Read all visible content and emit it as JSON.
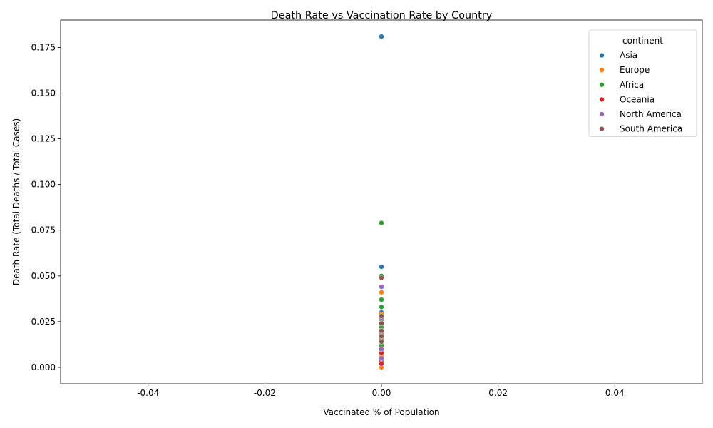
{
  "chart_data": {
    "type": "scatter",
    "title": "Death Rate vs Vaccination Rate by Country",
    "xlabel": "Vaccinated % of Population",
    "ylabel": "Death Rate (Total Deaths / Total Cases)",
    "xlim": [
      -0.055,
      0.055
    ],
    "ylim": [
      -0.009,
      0.19
    ],
    "xticks": [
      "-0.04",
      "-0.02",
      "0.00",
      "0.02",
      "0.04"
    ],
    "xtick_values": [
      -0.04,
      -0.02,
      0.0,
      0.02,
      0.04
    ],
    "yticks": [
      "0.000",
      "0.025",
      "0.050",
      "0.075",
      "0.100",
      "0.125",
      "0.150",
      "0.175"
    ],
    "ytick_values": [
      0.0,
      0.025,
      0.05,
      0.075,
      0.1,
      0.125,
      0.15,
      0.175
    ],
    "grid": false,
    "legend": {
      "title": "continent",
      "placement": "top-right"
    },
    "series": [
      {
        "name": "Asia",
        "color": "#1f77b4",
        "points": [
          {
            "x": 0,
            "y": 0.181
          },
          {
            "x": 0,
            "y": 0.055
          },
          {
            "x": 0,
            "y": 0.033
          },
          {
            "x": 0,
            "y": 0.03
          },
          {
            "x": 0,
            "y": 0.023
          },
          {
            "x": 0,
            "y": 0.021
          },
          {
            "x": 0,
            "y": 0.017
          },
          {
            "x": 0,
            "y": 0.012
          },
          {
            "x": 0,
            "y": 0.009
          },
          {
            "x": 0,
            "y": 0.007
          },
          {
            "x": 0,
            "y": 0.005
          },
          {
            "x": 0,
            "y": 0.004
          }
        ]
      },
      {
        "name": "Europe",
        "color": "#ff7f0e",
        "points": [
          {
            "x": 0,
            "y": 0.041
          },
          {
            "x": 0,
            "y": 0.029
          },
          {
            "x": 0,
            "y": 0.022
          },
          {
            "x": 0,
            "y": 0.019
          },
          {
            "x": 0,
            "y": 0.016
          },
          {
            "x": 0,
            "y": 0.011
          },
          {
            "x": 0,
            "y": 0.008
          },
          {
            "x": 0,
            "y": 0.006
          },
          {
            "x": 0,
            "y": 0.003
          },
          {
            "x": 0,
            "y": 0.0
          }
        ]
      },
      {
        "name": "Africa",
        "color": "#2ca02c",
        "points": [
          {
            "x": 0,
            "y": 0.079
          },
          {
            "x": 0,
            "y": 0.05
          },
          {
            "x": 0,
            "y": 0.037
          },
          {
            "x": 0,
            "y": 0.033
          },
          {
            "x": 0,
            "y": 0.026
          },
          {
            "x": 0,
            "y": 0.022
          },
          {
            "x": 0,
            "y": 0.02
          },
          {
            "x": 0,
            "y": 0.015
          },
          {
            "x": 0,
            "y": 0.012
          }
        ]
      },
      {
        "name": "Oceania",
        "color": "#d62728",
        "points": [
          {
            "x": 0,
            "y": 0.008
          },
          {
            "x": 0,
            "y": 0.003
          },
          {
            "x": 0,
            "y": 0.002
          }
        ]
      },
      {
        "name": "North America",
        "color": "#9467bd",
        "points": [
          {
            "x": 0,
            "y": 0.044
          },
          {
            "x": 0,
            "y": 0.027
          },
          {
            "x": 0,
            "y": 0.018
          },
          {
            "x": 0,
            "y": 0.01
          },
          {
            "x": 0,
            "y": 0.005
          }
        ]
      },
      {
        "name": "South America",
        "color": "#8c564b",
        "points": [
          {
            "x": 0,
            "y": 0.049
          },
          {
            "x": 0,
            "y": 0.028
          },
          {
            "x": 0,
            "y": 0.024
          },
          {
            "x": 0,
            "y": 0.02
          },
          {
            "x": 0,
            "y": 0.017
          },
          {
            "x": 0,
            "y": 0.014
          }
        ]
      }
    ]
  }
}
